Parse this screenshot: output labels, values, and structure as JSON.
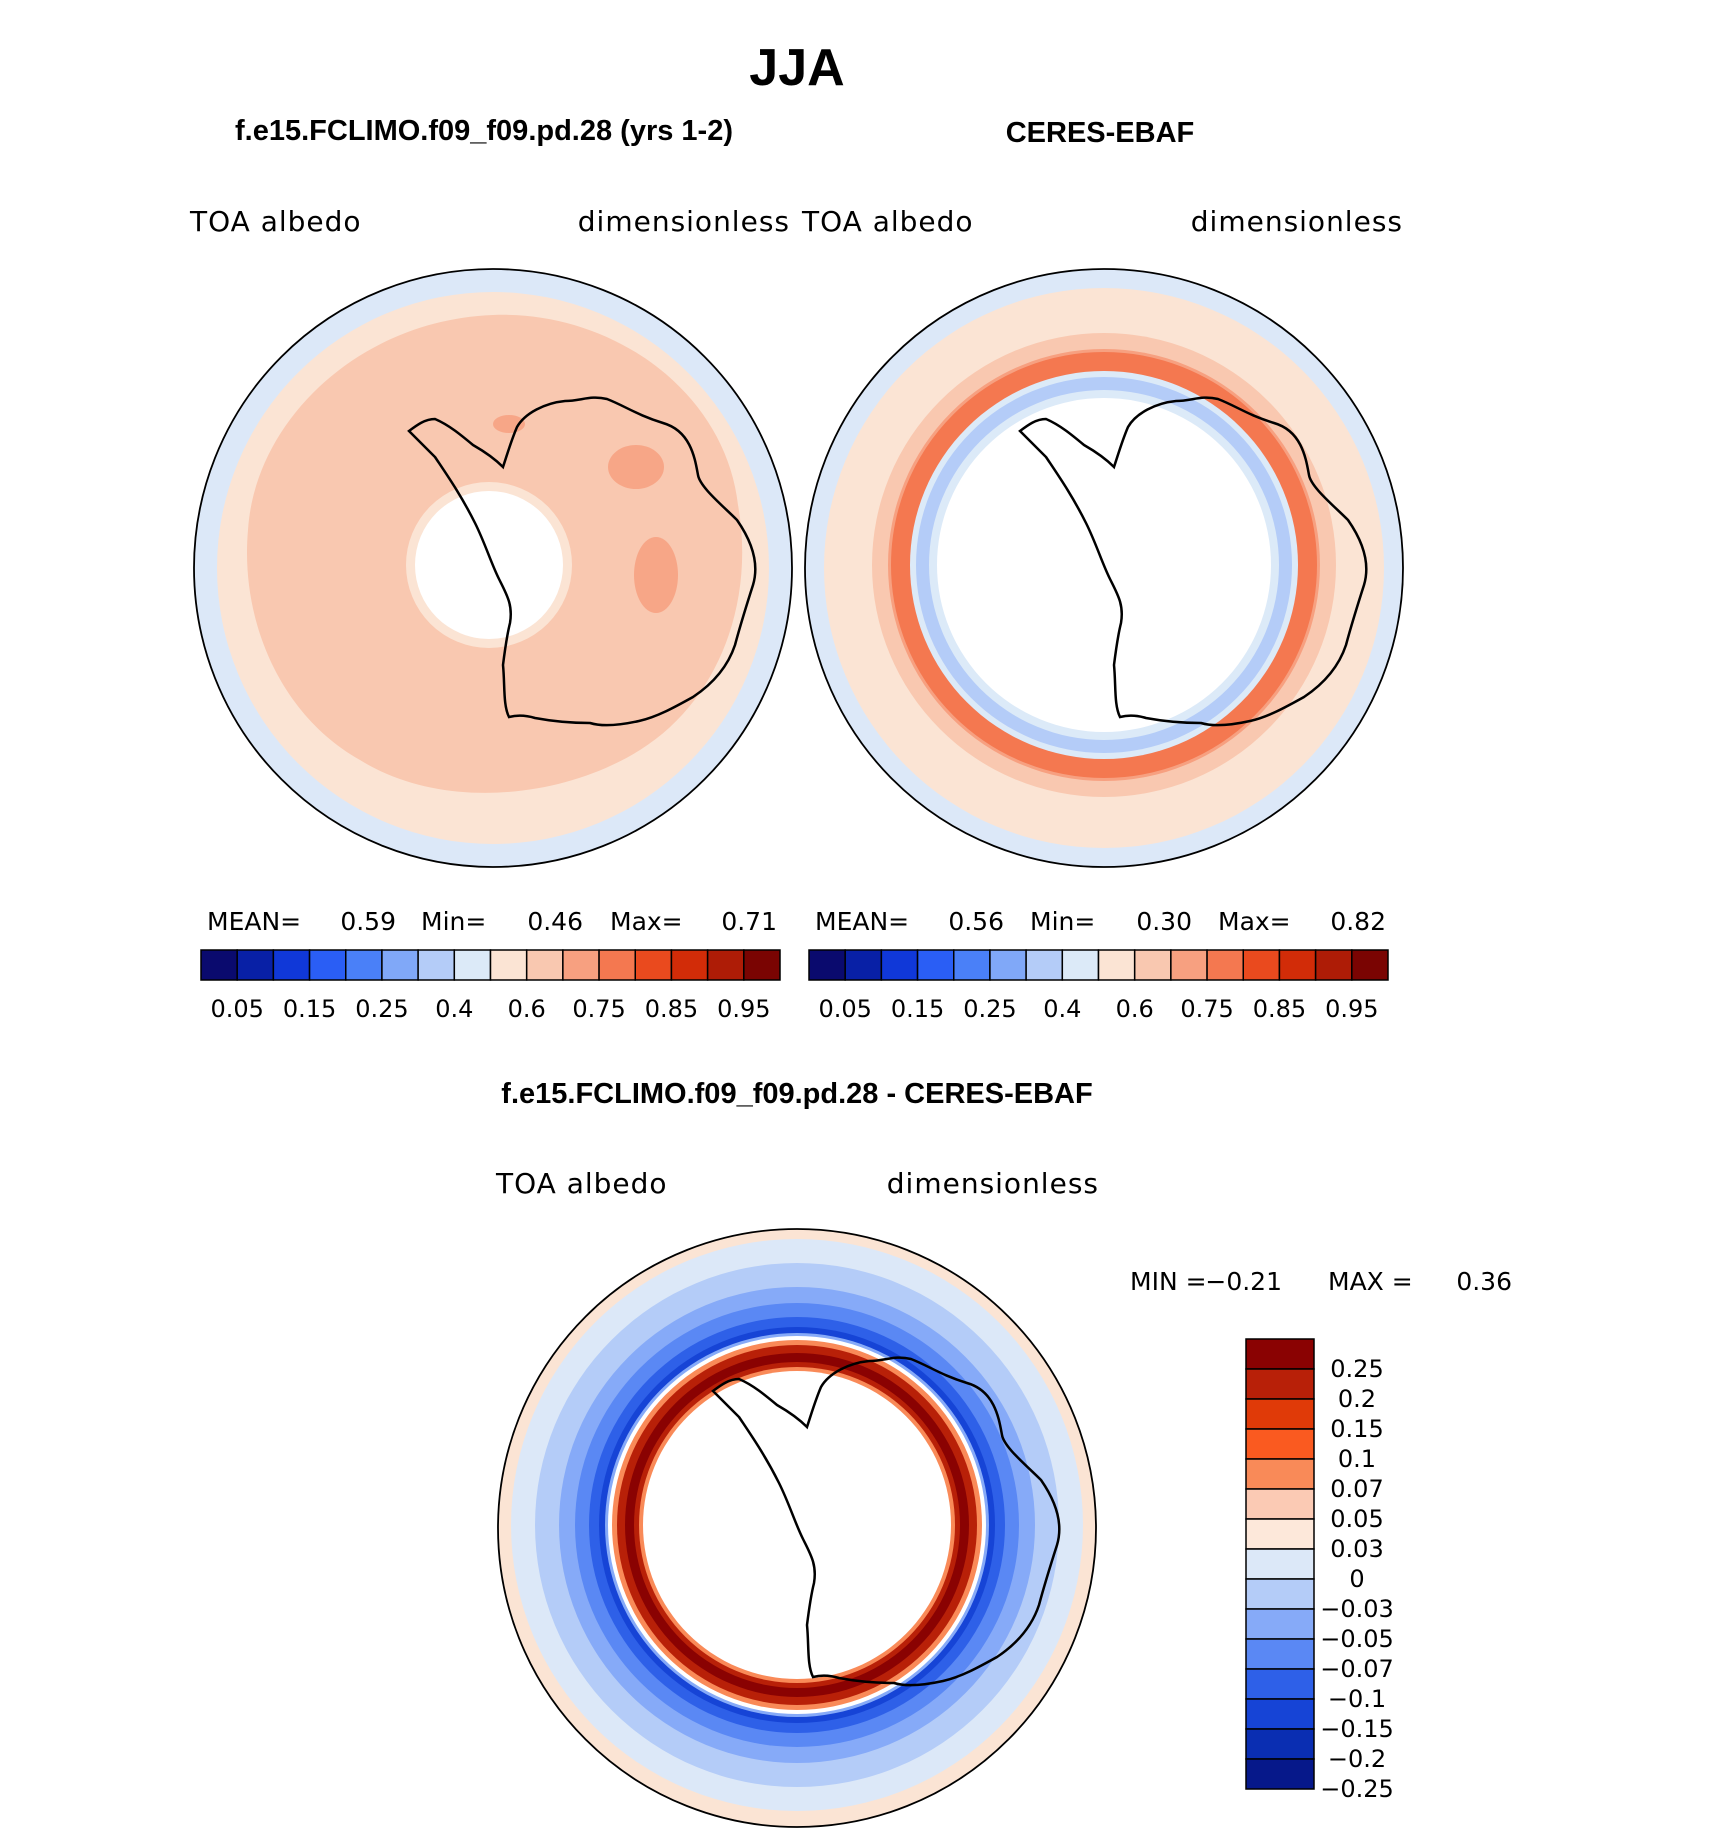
{
  "title": "JJA",
  "panels": [
    {
      "heading": "f.e15.FCLIMO.f09_f09.pd.28 (yrs 1-2)",
      "left_label": "TOA  albedo",
      "right_label": "dimensionless",
      "stats": {
        "mean_label": "MEAN=",
        "mean": "0.59",
        "min_label": "Min=",
        "min": "0.46",
        "max_label": "Max=",
        "max": "0.71"
      }
    },
    {
      "heading": "CERES-EBAF",
      "left_label": "TOA  albedo",
      "right_label": "dimensionless",
      "stats": {
        "mean_label": "MEAN=",
        "mean": "0.56",
        "min_label": "Min=",
        "min": "0.30",
        "max_label": "Max=",
        "max": "0.82"
      }
    },
    {
      "heading": "f.e15.FCLIMO.f09_f09.pd.28 - CERES-EBAF",
      "left_label": "TOA  albedo",
      "right_label": "dimensionless",
      "stats": {
        "min_label": "MIN =",
        "min": "−0.21",
        "max_label": "MAX =",
        "max": "0.36"
      }
    }
  ],
  "colorbars": {
    "absolute": {
      "colors": [
        "#0a0a6e",
        "#0820a6",
        "#1038d8",
        "#2a5ef5",
        "#4a80f8",
        "#80a8f8",
        "#b4ccf8",
        "#dceaf8",
        "#fbe4d4",
        "#f9c8b0",
        "#f7a080",
        "#f47850",
        "#ea4a1e",
        "#d22c08",
        "#ae1c06",
        "#7a0402"
      ],
      "tick_labels": [
        "0.05",
        "0.15",
        "0.25",
        "0.4",
        "0.6",
        "0.75",
        "0.85",
        "0.95"
      ]
    },
    "difference": {
      "colors": [
        "#8a0202",
        "#b82008",
        "#e03a08",
        "#fa5a20",
        "#f98a58",
        "#fbcab4",
        "#fde8da",
        "#dce8f8",
        "#b4ccf8",
        "#86aaf8",
        "#5a88f4",
        "#2e60e8",
        "#1644d6",
        "#0a2eb2",
        "#06188a"
      ],
      "tick_labels": [
        "0.25",
        "0.2",
        "0.15",
        "0.1",
        "0.07",
        "0.05",
        "0.03",
        "0",
        "−0.03",
        "−0.05",
        "−0.07",
        "−0.1",
        "−0.15",
        "−0.2",
        "−0.25"
      ]
    }
  },
  "chart_data": [
    {
      "type": "heatmap",
      "projection": "south-polar-stereographic",
      "title": "f.e15.FCLIMO.f09_f09.pd.28 (yrs 1-2)",
      "variable": "TOA albedo",
      "units": "dimensionless",
      "mean": 0.59,
      "min": 0.46,
      "max": 0.71,
      "levels": [
        0.05,
        0.1,
        0.15,
        0.2,
        0.25,
        0.3,
        0.4,
        0.5,
        0.6,
        0.65,
        0.75,
        0.8,
        0.85,
        0.9,
        0.95
      ],
      "dominant_values": {
        "outer_ocean": "0.5-0.6",
        "southern_ocean": "0.6-0.65",
        "interior_patches": "0.65-0.75"
      }
    },
    {
      "type": "heatmap",
      "projection": "south-polar-stereographic",
      "title": "CERES-EBAF",
      "variable": "TOA albedo",
      "units": "dimensionless",
      "mean": 0.56,
      "min": 0.3,
      "max": 0.82,
      "levels": [
        0.05,
        0.1,
        0.15,
        0.2,
        0.25,
        0.3,
        0.4,
        0.5,
        0.6,
        0.65,
        0.75,
        0.8,
        0.85,
        0.9,
        0.95
      ],
      "dominant_values": {
        "outer_ocean": "0.5-0.6",
        "storm_track_ring": "0.75-0.85",
        "sea_ice_ring": "0.3-0.5"
      }
    },
    {
      "type": "heatmap",
      "projection": "south-polar-stereographic",
      "title": "f.e15.FCLIMO.f09_f09.pd.28 - CERES-EBAF",
      "variable": "TOA albedo",
      "units": "dimensionless",
      "min": -0.21,
      "max": 0.36,
      "levels": [
        -0.25,
        -0.2,
        -0.15,
        -0.1,
        -0.07,
        -0.05,
        -0.03,
        0,
        0.03,
        0.05,
        0.07,
        0.1,
        0.15,
        0.2,
        0.25
      ],
      "dominant_values": {
        "outer_ocean": "-0.07 to -0.03",
        "storm_track": "-0.2 to -0.1",
        "ice_edge_ring": "0.15 to 0.25"
      }
    }
  ]
}
